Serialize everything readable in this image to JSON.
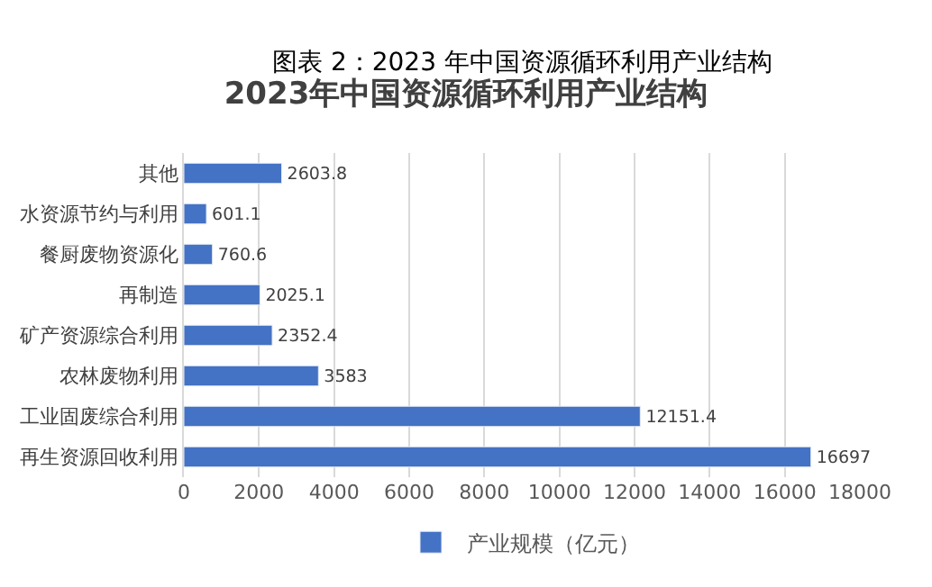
{
  "chart_data": {
    "type": "bar",
    "orientation": "horizontal",
    "title": "2023年中国资源循环利用产业结构",
    "annotations": [
      "图表 2：2023 年中国资源循环利用产业结构"
    ],
    "categories": [
      "其他",
      "水资源节约与利用",
      "餐厨废物资源化",
      "再制造",
      "矿产资源综合利用",
      "农林废物利用",
      "工业固废综合利用",
      "再生资源回收利用"
    ],
    "series": [
      {
        "name": "产业规模（亿元）",
        "color": "#4472c4",
        "values": [
          2603.8,
          601.1,
          760.6,
          2025.1,
          2352.4,
          3583,
          12151.4,
          16697
        ]
      }
    ],
    "xlim": [
      0,
      18000
    ],
    "xticks": [
      0,
      2000,
      4000,
      6000,
      8000,
      10000,
      12000,
      14000,
      16000,
      18000
    ],
    "grid": "x",
    "legend": "bottom",
    "data_labels": true
  }
}
